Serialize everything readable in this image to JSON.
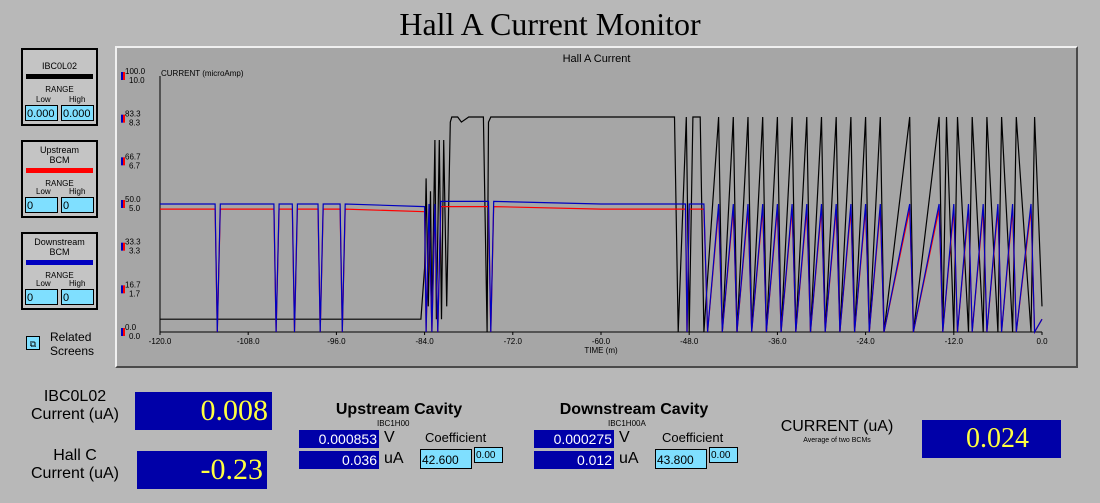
{
  "title": "Hall A Current Monitor",
  "panels": {
    "p1": {
      "name": "IBC0L02",
      "range_label": "RANGE",
      "low_label": "Low",
      "high_label": "High",
      "low": "0.000",
      "high": "0.000",
      "color": "#000000"
    },
    "p2": {
      "name_line1": "Upstream",
      "name_line2": "BCM",
      "range_label": "RANGE",
      "low_label": "Low",
      "high_label": "High",
      "low": "0",
      "high": "0",
      "color": "#ff0000"
    },
    "p3": {
      "name_line1": "Downstream",
      "name_line2": "BCM",
      "range_label": "RANGE",
      "low_label": "Low",
      "high_label": "High",
      "low": "0",
      "high": "0",
      "color": "#0000c0"
    }
  },
  "related": {
    "label_line1": "Related",
    "label_line2": "Screens",
    "icon": "related-screens-icon"
  },
  "chart_data": {
    "type": "line",
    "title": "Hall A Current",
    "ylabel": "CURRENT (microAmp)",
    "xlabel": "TIME (m)",
    "xlim": [
      -120,
      0
    ],
    "x_ticks": [
      "-120.0",
      "-108.0",
      "-96.0",
      "-84.0",
      "-72.0",
      "-60.0",
      "-48.0",
      "-36.0",
      "-24.0",
      "-12.0",
      "0.0"
    ],
    "y_ticks_a": [
      "0.0",
      "16.7",
      "33.3",
      "50.0",
      "66.7",
      "83.3",
      "100.0"
    ],
    "y_ticks_b": [
      "0.0",
      "1.7",
      "3.3",
      "5.0",
      "6.7",
      "8.3",
      "10.0"
    ],
    "grid": false,
    "series": [
      {
        "name": "IBC0L02",
        "color": "#000000",
        "scale": "100",
        "x": [
          -120,
          -84.5,
          -84,
          -83.8,
          -83.5,
          -83.2,
          -83,
          -82.6,
          -82.4,
          -82,
          -81.7,
          -81.4,
          -81,
          -80.5,
          -80.3,
          -79.5,
          -79,
          -78,
          -76,
          -75.5,
          -75.3,
          -75,
          -74.5,
          -72,
          -60,
          -50,
          -49.5,
          -48.4,
          -48,
          -47.5,
          -46.5,
          -46,
          -44,
          -43.5,
          -42,
          -41.5,
          -40,
          -39.5,
          -38,
          -37.5,
          -36,
          -35.5,
          -34,
          -33.5,
          -32,
          -31.5,
          -30,
          -29.5,
          -28,
          -27.5,
          -26,
          -25.5,
          -24,
          -23.5,
          -22,
          -21.5,
          -18,
          -17.5,
          -14,
          -13.5,
          -13,
          -12,
          -11.5,
          -10,
          -9.5,
          -8,
          -7.5,
          -6,
          -5.5,
          -4,
          -3.5,
          -1.5,
          -1,
          0
        ],
        "y": [
          5,
          5,
          25,
          60,
          10,
          55,
          5,
          75,
          5,
          75,
          5,
          75,
          10,
          82,
          84,
          84,
          82,
          84,
          84,
          0,
          82,
          84,
          84,
          84,
          84,
          84,
          0,
          84,
          0,
          84,
          84,
          0,
          84,
          0,
          84,
          0,
          84,
          0,
          84,
          0,
          84,
          0,
          84,
          0,
          84,
          0,
          84,
          0,
          84,
          0,
          84,
          0,
          84,
          0,
          84,
          0,
          84,
          0,
          84,
          0,
          84,
          0,
          84,
          0,
          84,
          0,
          84,
          0,
          84,
          0,
          84,
          0,
          84,
          10
        ]
      },
      {
        "name": "Upstream BCM",
        "color": "#ff0000",
        "scale": "10",
        "x": [
          -120,
          -112.5,
          -112.2,
          -111.8,
          -104.5,
          -104.2,
          -103.8,
          -102,
          -101.7,
          -101.3,
          -98.5,
          -98.2,
          -97.8,
          -95.5,
          -95.2,
          -94.8,
          -84,
          -83.8,
          -83.4,
          -83,
          -82.6,
          -82.2,
          -81.8,
          -75.3,
          -75,
          -74.6,
          -60,
          -48.5,
          -48.3,
          -48,
          -46,
          -45.5,
          -44,
          -43.5,
          -42,
          -41.5,
          -40,
          -39.5,
          -38,
          -37.5,
          -36,
          -35.5,
          -34,
          -33.5,
          -32,
          -31.5,
          -30,
          -29.5,
          -28,
          -27.5,
          -26,
          -25.5,
          -24,
          -23.5,
          -22,
          -21.5,
          -18,
          -17.5,
          -14,
          -13.5,
          -12,
          -11.5,
          -10,
          -9.5,
          -8,
          -7.5,
          -6,
          -5.5,
          -4,
          -3.5,
          -1.5,
          -1,
          0
        ],
        "y": [
          4.8,
          4.8,
          0,
          4.8,
          4.8,
          0,
          4.8,
          4.8,
          0,
          4.8,
          4.8,
          0,
          4.8,
          4.8,
          0,
          4.8,
          4.7,
          0,
          4.8,
          0,
          4.8,
          0,
          4.9,
          4.9,
          0,
          4.9,
          4.8,
          4.8,
          0,
          4.8,
          4.8,
          0,
          4.8,
          0,
          4.8,
          0,
          4.8,
          0,
          4.8,
          0,
          4.8,
          0,
          4.8,
          0,
          4.8,
          0,
          4.8,
          0,
          4.8,
          0,
          4.8,
          0,
          4.8,
          0,
          4.8,
          0,
          4.8,
          0,
          4.8,
          0,
          4.8,
          0,
          4.8,
          0,
          4.8,
          0,
          4.8,
          0,
          4.8,
          0,
          4.8,
          0,
          0.5
        ]
      },
      {
        "name": "Downstream BCM",
        "color": "#0000c0",
        "scale": "10",
        "x": [
          -120,
          -112.5,
          -112.2,
          -111.8,
          -104.5,
          -104.2,
          -103.8,
          -102,
          -101.7,
          -101.3,
          -98.5,
          -98.2,
          -97.8,
          -95.5,
          -95.2,
          -94.8,
          -84,
          -83.8,
          -83.4,
          -83,
          -82.6,
          -82.2,
          -81.8,
          -75.3,
          -75,
          -74.6,
          -60,
          -48.5,
          -48.3,
          -48,
          -46,
          -45.5,
          -44,
          -43.5,
          -42,
          -41.5,
          -40,
          -39.5,
          -38,
          -37.5,
          -36,
          -35.5,
          -34,
          -33.5,
          -32,
          -31.5,
          -30,
          -29.5,
          -28,
          -27.5,
          -26,
          -25.5,
          -24,
          -23.5,
          -22,
          -21.5,
          -18,
          -17.5,
          -14,
          -13.5,
          -12,
          -11.5,
          -10,
          -9.5,
          -8,
          -7.5,
          -6,
          -5.5,
          -4,
          -3.5,
          -1.5,
          -1,
          0
        ],
        "y": [
          5.0,
          5.0,
          0,
          5.0,
          5.0,
          0,
          5.0,
          5.0,
          0,
          5.0,
          5.0,
          0,
          5.0,
          5.0,
          0,
          5.0,
          4.9,
          0,
          5.0,
          0,
          5.0,
          0,
          5.1,
          5.1,
          0,
          5.1,
          5.0,
          5.0,
          0,
          5.0,
          5.0,
          0,
          5.0,
          0,
          5.0,
          0,
          5.0,
          0,
          5.0,
          0,
          5.0,
          0,
          5.0,
          0,
          5.0,
          0,
          5.0,
          0,
          5.0,
          0,
          5.0,
          0,
          5.0,
          0,
          5.0,
          0,
          5.0,
          0,
          5.0,
          0,
          5.0,
          0,
          5.0,
          0,
          5.0,
          0,
          5.0,
          0,
          5.0,
          0,
          5.0,
          0,
          0.5
        ]
      }
    ]
  },
  "bottom": {
    "ibc_label1": "IBC0L02",
    "ibc_label2": "Current (uA)",
    "ibc_value": "0.008",
    "hallc_label1": "Hall C",
    "hallc_label2": "Current (uA)",
    "hallc_value": "-0.23",
    "up_title": "Upstream Cavity",
    "up_sub": "IBC1H00",
    "up_v": "0.000853",
    "up_v_unit": "V",
    "up_ua": "0.036",
    "up_ua_unit": "uA",
    "up_coef_label": "Coefficient",
    "up_coef": "42.600",
    "up_small": "0.00",
    "down_title": "Downstream Cavity",
    "down_sub": "IBC1H00A",
    "down_v": "0.000275",
    "down_v_unit": "V",
    "down_ua": "0.012",
    "down_ua_unit": "uA",
    "down_coef_label": "Coefficient",
    "down_coef": "43.800",
    "down_small": "0.00",
    "cur_label": "CURRENT (uA)",
    "cur_sub": "Average of two BCMs",
    "cur_value": "0.024"
  }
}
